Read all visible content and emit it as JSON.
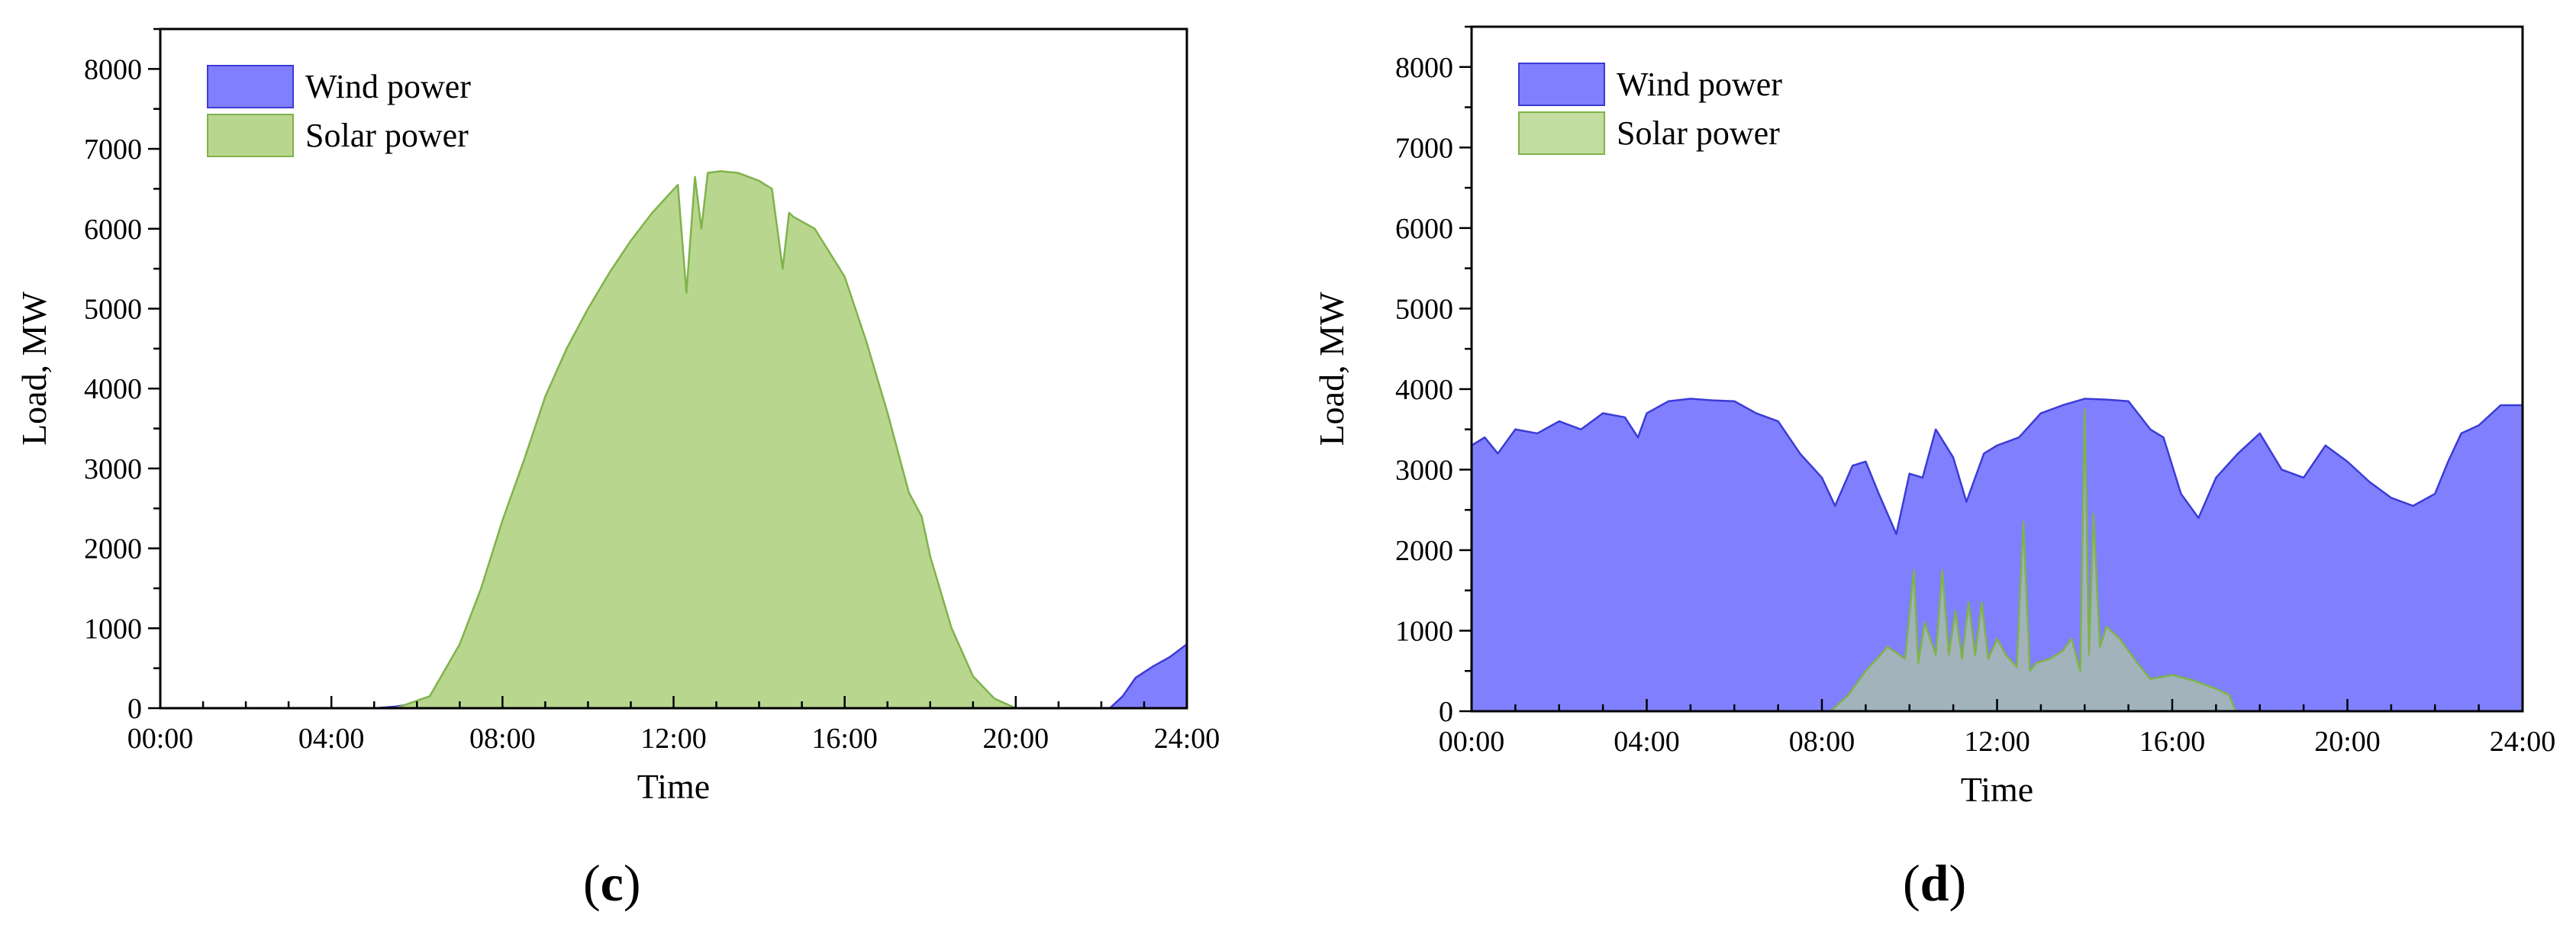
{
  "chart_data": [
    {
      "type": "area",
      "panel_label": "c",
      "title": "",
      "xlabel": "Time",
      "ylabel": "Load, MW",
      "xlim": [
        0,
        24
      ],
      "ylim": [
        0,
        8500
      ],
      "x_ticks": [
        0,
        4,
        8,
        12,
        16,
        20,
        24
      ],
      "x_tick_labels": [
        "00:00",
        "04:00",
        "08:00",
        "12:00",
        "16:00",
        "20:00",
        "24:00"
      ],
      "y_ticks": [
        0,
        1000,
        2000,
        3000,
        4000,
        5000,
        6000,
        7000,
        8000
      ],
      "y_tick_labels": [
        "0",
        "1000",
        "2000",
        "3000",
        "4000",
        "5000",
        "6000",
        "7000",
        "8000"
      ],
      "legend_position": "top-left",
      "series": [
        {
          "name": "Wind power",
          "fill": "#8080ff",
          "stroke": "#3b3bd6",
          "x": [
            0,
            5,
            5.5,
            6,
            6.5,
            7,
            10,
            12,
            14,
            16,
            18,
            20,
            22.2,
            22.5,
            22.8,
            23.2,
            23.6,
            24
          ],
          "values": [
            0,
            0,
            20,
            60,
            10,
            0,
            20,
            60,
            60,
            40,
            20,
            0,
            0,
            150,
            380,
            520,
            640,
            800
          ]
        },
        {
          "name": "Solar power",
          "fill": "#b9d68f",
          "stroke": "#7fb34a",
          "x": [
            0,
            5.5,
            6.3,
            7,
            7.5,
            8,
            8.5,
            9,
            9.5,
            10,
            10.5,
            11,
            11.5,
            12.1,
            12.3,
            12.5,
            12.65,
            12.8,
            13.1,
            13.5,
            14,
            14.3,
            14.55,
            14.7,
            14.8,
            15.3,
            16,
            16.5,
            17,
            17.5,
            17.8,
            18,
            18.5,
            19,
            19.5,
            20,
            20.5,
            24
          ],
          "values": [
            0,
            0,
            150,
            800,
            1500,
            2350,
            3100,
            3900,
            4500,
            5000,
            5450,
            5850,
            6200,
            6550,
            5200,
            6650,
            6000,
            6700,
            6720,
            6700,
            6600,
            6500,
            5500,
            6200,
            6150,
            6000,
            5400,
            4600,
            3700,
            2700,
            2400,
            1900,
            1000,
            400,
            120,
            0,
            0,
            0
          ]
        }
      ]
    },
    {
      "type": "area",
      "panel_label": "d",
      "title": "",
      "xlabel": "Time",
      "ylabel": "Load, MW",
      "xlim": [
        0,
        24
      ],
      "ylim": [
        0,
        8500
      ],
      "x_ticks": [
        0,
        4,
        8,
        12,
        16,
        20,
        24
      ],
      "x_tick_labels": [
        "00:00",
        "04:00",
        "08:00",
        "12:00",
        "16:00",
        "20:00",
        "24:00"
      ],
      "y_ticks": [
        0,
        1000,
        2000,
        3000,
        4000,
        5000,
        6000,
        7000,
        8000
      ],
      "y_tick_labels": [
        "0",
        "1000",
        "2000",
        "3000",
        "4000",
        "5000",
        "6000",
        "7000",
        "8000"
      ],
      "legend_position": "top-left",
      "series": [
        {
          "name": "Wind power",
          "fill": "#8080ff",
          "stroke": "#3b3bd6",
          "x": [
            0,
            0.3,
            0.6,
            1,
            1.5,
            2,
            2.5,
            3,
            3.5,
            3.8,
            4,
            4.5,
            5,
            5.5,
            6,
            6.5,
            7,
            7.5,
            8,
            8.3,
            8.7,
            9,
            9.3,
            9.7,
            10,
            10.3,
            10.6,
            11,
            11.3,
            11.7,
            12,
            12.5,
            13,
            13.5,
            14,
            14.5,
            15,
            15.5,
            15.8,
            16.2,
            16.6,
            17,
            17.5,
            18,
            18.5,
            19,
            19.5,
            20,
            20.5,
            21,
            21.5,
            22,
            22.3,
            22.6,
            23,
            23.5,
            24
          ],
          "values": [
            3300,
            3400,
            3200,
            3500,
            3450,
            3600,
            3500,
            3700,
            3650,
            3400,
            3700,
            3850,
            3880,
            3860,
            3850,
            3700,
            3600,
            3200,
            2900,
            2550,
            3050,
            3100,
            2700,
            2200,
            2950,
            2900,
            3500,
            3150,
            2600,
            3200,
            3300,
            3400,
            3700,
            3800,
            3880,
            3870,
            3850,
            3500,
            3400,
            2700,
            2400,
            2900,
            3200,
            3450,
            3000,
            2900,
            3300,
            3100,
            2850,
            2650,
            2550,
            2700,
            3100,
            3450,
            3550,
            3800,
            3800
          ]
        },
        {
          "name": "Solar power",
          "fill": "#b9d68f",
          "stroke": "#7fb34a",
          "x": [
            0,
            8.2,
            8.6,
            9,
            9.5,
            9.9,
            10.1,
            10.2,
            10.35,
            10.6,
            10.75,
            10.9,
            11.05,
            11.2,
            11.35,
            11.5,
            11.65,
            11.8,
            12,
            12.2,
            12.45,
            12.6,
            12.75,
            12.9,
            13.2,
            13.5,
            13.7,
            13.9,
            14,
            14.1,
            14.2,
            14.35,
            14.5,
            14.8,
            15.2,
            15.5,
            16,
            16.5,
            17,
            17.3,
            17.45,
            24
          ],
          "values": [
            0,
            0,
            200,
            500,
            800,
            650,
            1750,
            600,
            1100,
            700,
            1750,
            700,
            1250,
            650,
            1350,
            700,
            1350,
            650,
            900,
            700,
            550,
            2350,
            500,
            600,
            650,
            750,
            900,
            500,
            3750,
            700,
            2450,
            800,
            1050,
            900,
            600,
            400,
            450,
            380,
            280,
            200,
            0,
            0
          ]
        }
      ]
    }
  ]
}
